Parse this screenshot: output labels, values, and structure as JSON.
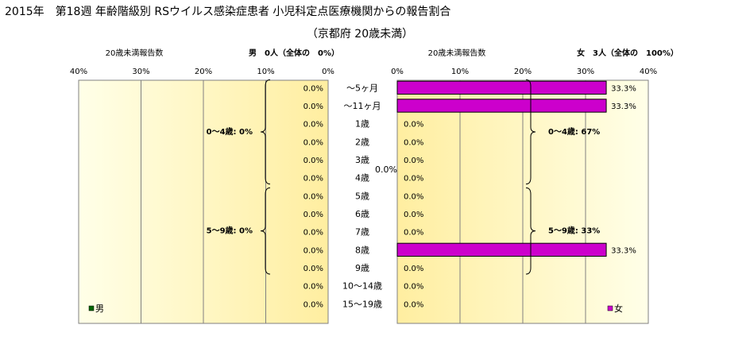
{
  "title": "2015年　第18週 年齢階級別 RSウイルス感染症患者 小児科定点医療機関からの報告割合",
  "subtitle": "（京都府 20歳未満）",
  "chart_data": [
    {
      "type": "bar",
      "orientation": "horizontal",
      "direction": "right-to-left",
      "side": "male",
      "xlabel": "20歳未満報告数",
      "header": "男　0人（全体の　0%）",
      "legend": "男",
      "legend_placement": "bottom-left",
      "xlim": [
        0,
        40
      ],
      "ticks": [
        "40%",
        "30%",
        "20%",
        "10%",
        "0%"
      ],
      "grid": true,
      "color": "#006600",
      "categories": [
        "～5ヶ月",
        "～11ヶ月",
        "1歳",
        "2歳",
        "3歳",
        "4歳",
        "5歳",
        "6歳",
        "7歳",
        "8歳",
        "9歳",
        "10～14歳",
        "15～19歳"
      ],
      "values": [
        0,
        0,
        0,
        0,
        0,
        0,
        0,
        0,
        0,
        0,
        0,
        0,
        0
      ],
      "value_labels": [
        "0.0%",
        "0.0%",
        "0.0%",
        "0.0%",
        "0.0%",
        "0.0%",
        "0.0%",
        "0.0%",
        "0.0%",
        "0.0%",
        "0.0%",
        "0.0%",
        "0.0%"
      ],
      "groups": [
        {
          "label": "0～4歳: 0%",
          "from": 0,
          "to": 5
        },
        {
          "label": "5～9歳: 0%",
          "from": 6,
          "to": 10
        }
      ]
    },
    {
      "type": "bar",
      "orientation": "horizontal",
      "side": "female",
      "xlabel": "20歳未満報告数",
      "header": "女　3人（全体の　100%）",
      "legend": "女",
      "legend_placement": "bottom-right",
      "xlim": [
        0,
        40
      ],
      "ticks": [
        "0%",
        "10%",
        "20%",
        "30%",
        "40%"
      ],
      "grid": true,
      "color": "#cc00cc",
      "categories": [
        "～5ヶ月",
        "～11ヶ月",
        "1歳",
        "2歳",
        "3歳",
        "4歳",
        "5歳",
        "6歳",
        "7歳",
        "8歳",
        "9歳",
        "10～14歳",
        "15～19歳"
      ],
      "values": [
        33.3,
        33.3,
        0,
        0,
        0,
        0,
        0,
        0,
        0,
        33.3,
        0,
        0,
        0
      ],
      "value_labels": [
        "33.3%",
        "33.3%",
        "0.0%",
        "0.0%",
        "0.0%",
        "0.0%",
        "0.0%",
        "0.0%",
        "0.0%",
        "33.3%",
        "0.0%",
        "0.0%",
        "0.0%"
      ],
      "groups": [
        {
          "label": "0～4歳: 67%",
          "from": 0,
          "to": 5
        },
        {
          "label": "5～9歳: 33%",
          "from": 6,
          "to": 10
        }
      ]
    }
  ],
  "center_label": "0.0%",
  "colors": {
    "male_area_bg": "#ffffc4",
    "female_area_bg": "#ffffc4",
    "gridline": "#808080",
    "bar_outline": "#000000"
  }
}
